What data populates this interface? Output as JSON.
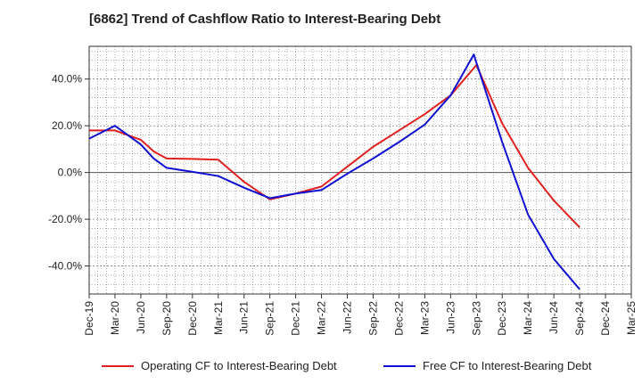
{
  "chart_data": {
    "type": "line",
    "title": "[6862]  Trend of Cashflow Ratio to Interest-Bearing Debt",
    "xlabel": "",
    "ylabel": "",
    "categories": [
      "Dec-19",
      "Mar-20",
      "Jun-20",
      "Sep-20",
      "Dec-20",
      "Mar-21",
      "Jun-21",
      "Sep-21",
      "Dec-21",
      "Mar-22",
      "Jun-22",
      "Sep-22",
      "Dec-22",
      "Mar-23",
      "Jun-23",
      "Sep-23",
      "Dec-23",
      "Mar-24",
      "Jun-24",
      "Sep-24",
      "Dec-24",
      "Mar-25"
    ],
    "ylim": [
      -52,
      54
    ],
    "yticks": [
      40,
      20,
      0,
      -20,
      -40
    ],
    "ytick_labels": [
      "40.0%",
      "20.0%",
      "0.0%",
      "-20.0%",
      "-40.0%"
    ],
    "grid": true,
    "legend_position": "bottom",
    "series": [
      {
        "name": "Operating CF to Interest-Bearing Debt",
        "color": "#e02020",
        "points": [
          [
            0,
            18
          ],
          [
            1,
            18
          ],
          [
            2,
            14
          ],
          [
            2.5,
            9
          ],
          [
            3,
            6
          ],
          [
            4,
            5.8
          ],
          [
            5,
            5.5
          ],
          [
            6,
            -4
          ],
          [
            7,
            -11.5
          ],
          [
            8,
            -9
          ],
          [
            9,
            -6
          ],
          [
            10,
            2.5
          ],
          [
            11,
            11
          ],
          [
            12,
            18
          ],
          [
            13,
            25
          ],
          [
            14,
            33
          ],
          [
            15,
            46
          ],
          [
            16,
            21
          ],
          [
            17,
            2
          ],
          [
            18,
            -12
          ],
          [
            19,
            -23.5
          ]
        ]
      },
      {
        "name": "Free CF to Interest-Bearing Debt",
        "color": "#1010d0",
        "points": [
          [
            0,
            14.5
          ],
          [
            1,
            20
          ],
          [
            2,
            12
          ],
          [
            2.5,
            6
          ],
          [
            3,
            2
          ],
          [
            4,
            0.3
          ],
          [
            5,
            -1.5
          ],
          [
            6,
            -6.5
          ],
          [
            7,
            -11
          ],
          [
            8,
            -9
          ],
          [
            9,
            -7.5
          ],
          [
            10,
            -0.5
          ],
          [
            11,
            6
          ],
          [
            12,
            13
          ],
          [
            13,
            20.5
          ],
          [
            14,
            33
          ],
          [
            14.9,
            50.5
          ],
          [
            15,
            47
          ],
          [
            16,
            13
          ],
          [
            17,
            -18
          ],
          [
            18,
            -37
          ],
          [
            19,
            -50
          ]
        ]
      }
    ]
  }
}
